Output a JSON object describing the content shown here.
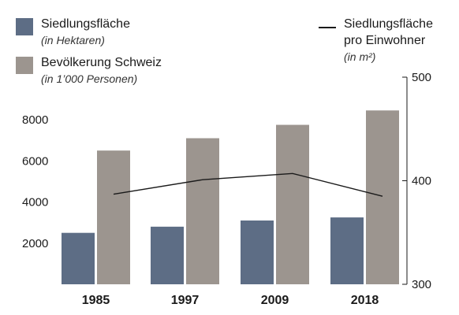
{
  "chart_data": {
    "type": "bar+line",
    "categories": [
      "1985",
      "1997",
      "2009",
      "2018"
    ],
    "series": [
      {
        "name": "Siedlungsfläche",
        "unit": "(in Hektaren)",
        "type": "bar",
        "axis": "left",
        "color": "#5d6d85",
        "values": [
          2500,
          2800,
          3100,
          3250
        ]
      },
      {
        "name": "Bevölkerung Schweiz",
        "unit": "(in 1’000 Personen)",
        "type": "bar",
        "axis": "left",
        "color": "#9c958f",
        "values": [
          6500,
          7100,
          7750,
          8450
        ]
      },
      {
        "name": "Siedlungsfläche\npro Einwohner",
        "unit": "(in m²)",
        "type": "line",
        "axis": "right",
        "color": "#1a1a1a",
        "values": [
          387,
          401,
          407,
          385
        ]
      }
    ],
    "y_left": {
      "min": 0,
      "max": 9000,
      "ticks": [
        "2000",
        "4000",
        "6000",
        "8000"
      ],
      "tick_values": [
        2000,
        4000,
        6000,
        8000
      ]
    },
    "y_right": {
      "min": 300,
      "max": 500,
      "ticks": [
        "300",
        "400",
        "500"
      ],
      "tick_values": [
        300,
        400,
        500
      ]
    },
    "grid": false,
    "legend": "top"
  },
  "legend": {
    "bar1_title": "Siedlungsfläche",
    "bar1_sub": "(in Hektaren)",
    "bar2_title": "Bevölkerung Schweiz",
    "bar2_sub": "(in 1’000 Personen)",
    "line_title_1": "Siedlungsfläche",
    "line_title_2": "pro Einwohner",
    "line_sub": "(in m²)"
  }
}
